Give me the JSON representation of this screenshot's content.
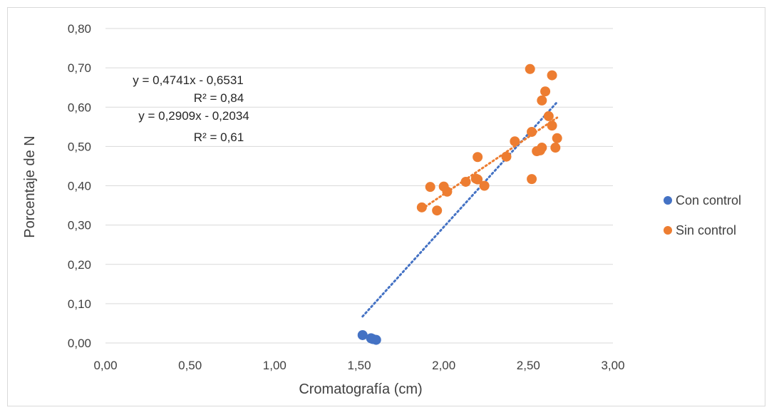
{
  "chart_data": {
    "type": "scatter",
    "xlabel": "Cromatografía (cm)",
    "ylabel": "Porcentaje de N",
    "xlim": [
      0,
      3
    ],
    "ylim": [
      0,
      0.8
    ],
    "x_ticks": [
      "0,00",
      "0,50",
      "1,00",
      "1,50",
      "2,00",
      "2,50",
      "3,00"
    ],
    "y_ticks": [
      "0,00",
      "0,10",
      "0,20",
      "0,30",
      "0,40",
      "0,50",
      "0,60",
      "0,70",
      "0,80"
    ],
    "grid": "horizontal",
    "legend_position": "right",
    "series": [
      {
        "name": "Con control",
        "color": "#4472C4",
        "points": [
          [
            1.52,
            0.02
          ],
          [
            1.57,
            0.012
          ],
          [
            1.58,
            0.01
          ],
          [
            1.6,
            0.008
          ]
        ]
      },
      {
        "name": "Sin control",
        "color": "#ED7D31",
        "points": [
          [
            1.87,
            0.345
          ],
          [
            1.92,
            0.397
          ],
          [
            1.96,
            0.337
          ],
          [
            2.0,
            0.398
          ],
          [
            2.02,
            0.385
          ],
          [
            2.13,
            0.41
          ],
          [
            2.19,
            0.418
          ],
          [
            2.2,
            0.473
          ],
          [
            2.2,
            0.416
          ],
          [
            2.24,
            0.4
          ],
          [
            2.37,
            0.474
          ],
          [
            2.42,
            0.513
          ],
          [
            2.51,
            0.697
          ],
          [
            2.52,
            0.417
          ],
          [
            2.52,
            0.537
          ],
          [
            2.55,
            0.488
          ],
          [
            2.57,
            0.49
          ],
          [
            2.58,
            0.497
          ],
          [
            2.58,
            0.617
          ],
          [
            2.6,
            0.64
          ],
          [
            2.62,
            0.577
          ],
          [
            2.64,
            0.553
          ],
          [
            2.64,
            0.681
          ],
          [
            2.66,
            0.497
          ],
          [
            2.67,
            0.521
          ]
        ]
      }
    ],
    "trendlines": [
      {
        "series": "Con control",
        "slope": 0.4741,
        "intercept": -0.6531,
        "x_range": [
          1.52,
          2.67
        ],
        "color": "#4472C4"
      },
      {
        "series": "Sin control",
        "slope": 0.2909,
        "intercept": -0.2034,
        "x_range": [
          1.87,
          2.67
        ],
        "color": "#ED7D31"
      }
    ],
    "annotations": [
      "y = 0,4741x - 0,6531",
      "R² = 0,84",
      "y = 0,2909x - 0,2034",
      "R² = 0,61"
    ]
  }
}
